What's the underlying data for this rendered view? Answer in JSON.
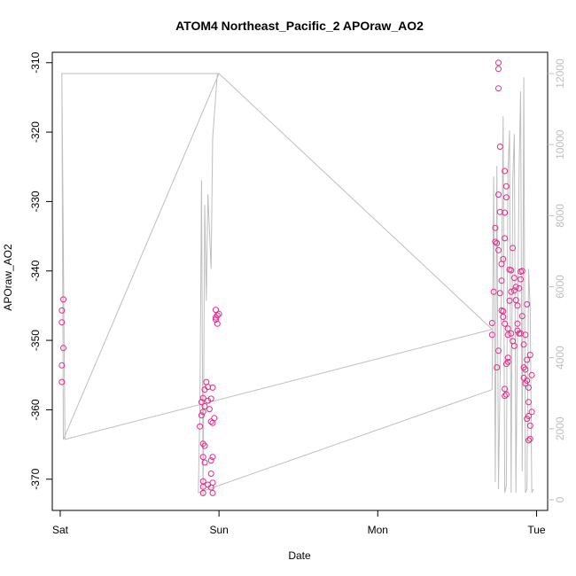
{
  "chart_data": {
    "type": "scatter",
    "title": "ATOM4 Northeast_Pacific_2 APOraw_AO2",
    "xlabel": "Date",
    "ylabel": "APOraw_AO2",
    "x_tick_labels": [
      "Sat",
      "Sun",
      "Mon",
      "Tue"
    ],
    "x_axis_unit": "days",
    "xlim": [
      -0.05,
      3.07
    ],
    "ylim": [
      -374.5,
      -308.5
    ],
    "y_ticks": [
      -370,
      -360,
      -350,
      -340,
      -330,
      -320,
      -310
    ],
    "y2_ticks": [
      0,
      2000,
      4000,
      6000,
      8000,
      10000,
      12000
    ],
    "y2lim": [
      -300,
      12600
    ],
    "point_color": "#e7298a",
    "line_color": "#bebebe",
    "right_axis_color": "#bebebe",
    "series": [
      {
        "type": "scatter",
        "points": [
          [
            0.02,
            -344.1
          ],
          [
            0.01,
            -345.7
          ],
          [
            0.01,
            -347.4
          ],
          [
            0.02,
            -351.1
          ],
          [
            0.01,
            -353.6
          ],
          [
            0.01,
            -356.0
          ],
          [
            0.88,
            -362.4
          ],
          [
            0.89,
            -360.8
          ],
          [
            0.9,
            -360.3
          ],
          [
            0.89,
            -358.9
          ],
          [
            0.9,
            -358.3
          ],
          [
            0.91,
            -359.5
          ],
          [
            0.91,
            -357.1
          ],
          [
            0.92,
            -356.0
          ],
          [
            0.93,
            -356.7
          ],
          [
            0.93,
            -358.7
          ],
          [
            0.94,
            -359.9
          ],
          [
            0.95,
            -358.4
          ],
          [
            0.96,
            -356.8
          ],
          [
            0.95,
            -361.7
          ],
          [
            0.96,
            -361.9
          ],
          [
            0.97,
            -361.2
          ],
          [
            0.9,
            -364.9
          ],
          [
            0.91,
            -365.2
          ],
          [
            0.9,
            -366.8
          ],
          [
            0.91,
            -367.6
          ],
          [
            0.9,
            -370.3
          ],
          [
            0.9,
            -371.1
          ],
          [
            0.9,
            -372.0
          ],
          [
            0.93,
            -370.8
          ],
          [
            0.95,
            -371.2
          ],
          [
            0.95,
            -369.2
          ],
          [
            0.95,
            -367.3
          ],
          [
            0.96,
            -366.8
          ],
          [
            0.96,
            -370.5
          ],
          [
            0.96,
            -372.0
          ],
          [
            0.98,
            -345.6
          ],
          [
            0.99,
            -346.4
          ],
          [
            1.0,
            -346.2
          ],
          [
            0.98,
            -347.0
          ],
          [
            0.99,
            -347.6
          ],
          [
            0.98,
            -346.7
          ],
          [
            2.72,
            -349.2
          ],
          [
            2.72,
            -347.5
          ],
          [
            2.73,
            -343.0
          ],
          [
            2.74,
            -335.8
          ],
          [
            2.75,
            -336.0
          ],
          [
            2.74,
            -333.8
          ],
          [
            2.76,
            -329.0
          ],
          [
            2.77,
            -331.5
          ],
          [
            2.76,
            -337.0
          ],
          [
            2.77,
            -343.2
          ],
          [
            2.78,
            -345.7
          ],
          [
            2.76,
            -351.5
          ],
          [
            2.75,
            -353.9
          ],
          [
            2.78,
            -339.0
          ],
          [
            2.79,
            -338.3
          ],
          [
            2.78,
            -341.4
          ],
          [
            2.8,
            -335.3
          ],
          [
            2.81,
            -327.8
          ],
          [
            2.8,
            -325.6
          ],
          [
            2.81,
            -329.4
          ],
          [
            2.8,
            -331.6
          ],
          [
            2.79,
            -346.6
          ],
          [
            2.8,
            -347.6
          ],
          [
            2.81,
            -353.4
          ],
          [
            2.82,
            -348.3
          ],
          [
            2.82,
            -349.2
          ],
          [
            2.83,
            -344.3
          ],
          [
            2.84,
            -343.0
          ],
          [
            2.84,
            -349.0
          ],
          [
            2.85,
            -350.1
          ],
          [
            2.85,
            -336.7
          ],
          [
            2.86,
            -341.0
          ],
          [
            2.87,
            -342.3
          ],
          [
            2.86,
            -342.8
          ],
          [
            2.87,
            -344.2
          ],
          [
            2.88,
            -345.0
          ],
          [
            2.88,
            -348.6
          ],
          [
            2.89,
            -349.0
          ],
          [
            2.89,
            -342.5
          ],
          [
            2.9,
            -341.2
          ],
          [
            2.9,
            -340.1
          ],
          [
            2.91,
            -340.0
          ],
          [
            2.91,
            -346.5
          ],
          [
            2.92,
            -350.6
          ],
          [
            2.92,
            -355.4
          ],
          [
            2.93,
            -356.2
          ],
          [
            2.93,
            -354.2
          ],
          [
            2.94,
            -352.8
          ],
          [
            2.94,
            -355.8
          ],
          [
            2.95,
            -358.9
          ],
          [
            2.95,
            -360.9
          ],
          [
            2.96,
            -362.3
          ],
          [
            2.96,
            -364.2
          ],
          [
            2.95,
            -364.4
          ],
          [
            2.97,
            -360.3
          ],
          [
            2.97,
            -355.0
          ],
          [
            2.96,
            -352.1
          ],
          [
            2.76,
            -310.0
          ],
          [
            2.76,
            -310.9
          ],
          [
            2.76,
            -313.7
          ],
          [
            2.77,
            -322.1
          ],
          [
            2.8,
            -357.0
          ],
          [
            2.81,
            -357.8
          ],
          [
            2.82,
            -353.1
          ],
          [
            2.93,
            -349.2
          ],
          [
            2.94,
            -344.8
          ],
          [
            2.79,
            -345.8
          ],
          [
            2.83,
            -339.8
          ],
          [
            2.84,
            -339.9
          ],
          [
            2.82,
            -352.5
          ],
          [
            2.86,
            -350.8
          ],
          [
            2.88,
            -347.6
          ],
          [
            2.9,
            -349.0
          ],
          [
            2.92,
            -353.9
          ],
          [
            2.8,
            -358.0
          ],
          [
            2.95,
            -356.8
          ],
          [
            2.94,
            -361.3
          ]
        ]
      },
      {
        "type": "line",
        "axis": "right",
        "points": [
          [
            0.01,
            12000
          ],
          [
            0.03,
            1700
          ],
          [
            2.72,
            4800
          ],
          [
            1.0,
            12000
          ],
          [
            0.01,
            12000
          ],
          [
            0.01,
            12000
          ],
          [
            0.02,
            1700
          ],
          [
            1.0,
            12000
          ],
          [
            0.99,
            12000
          ],
          [
            0.96,
            10200
          ],
          [
            0.95,
            6500
          ],
          [
            0.93,
            8600
          ],
          [
            0.92,
            5600
          ],
          [
            0.91,
            8300
          ],
          [
            0.9,
            100
          ],
          [
            0.89,
            9000
          ],
          [
            0.88,
            2600
          ],
          [
            0.87,
            200
          ],
          [
            2.72,
            3100
          ],
          [
            2.73,
            9100
          ],
          [
            2.74,
            500
          ],
          [
            2.75,
            9400
          ],
          [
            2.76,
            300
          ],
          [
            2.78,
            6200
          ],
          [
            2.79,
            10800
          ],
          [
            2.8,
            200
          ],
          [
            2.81,
            400
          ],
          [
            2.82,
            9200
          ],
          [
            2.83,
            10400
          ],
          [
            2.84,
            200
          ],
          [
            2.85,
            9000
          ],
          [
            2.86,
            10300
          ],
          [
            2.87,
            200
          ],
          [
            2.89,
            9300
          ],
          [
            2.9,
            11500
          ],
          [
            2.91,
            800
          ],
          [
            2.92,
            11900
          ],
          [
            2.93,
            200
          ],
          [
            2.94,
            300
          ],
          [
            2.95,
            6500
          ],
          [
            2.96,
            5400
          ],
          [
            2.97,
            200
          ],
          [
            2.98,
            300
          ]
        ]
      }
    ]
  }
}
